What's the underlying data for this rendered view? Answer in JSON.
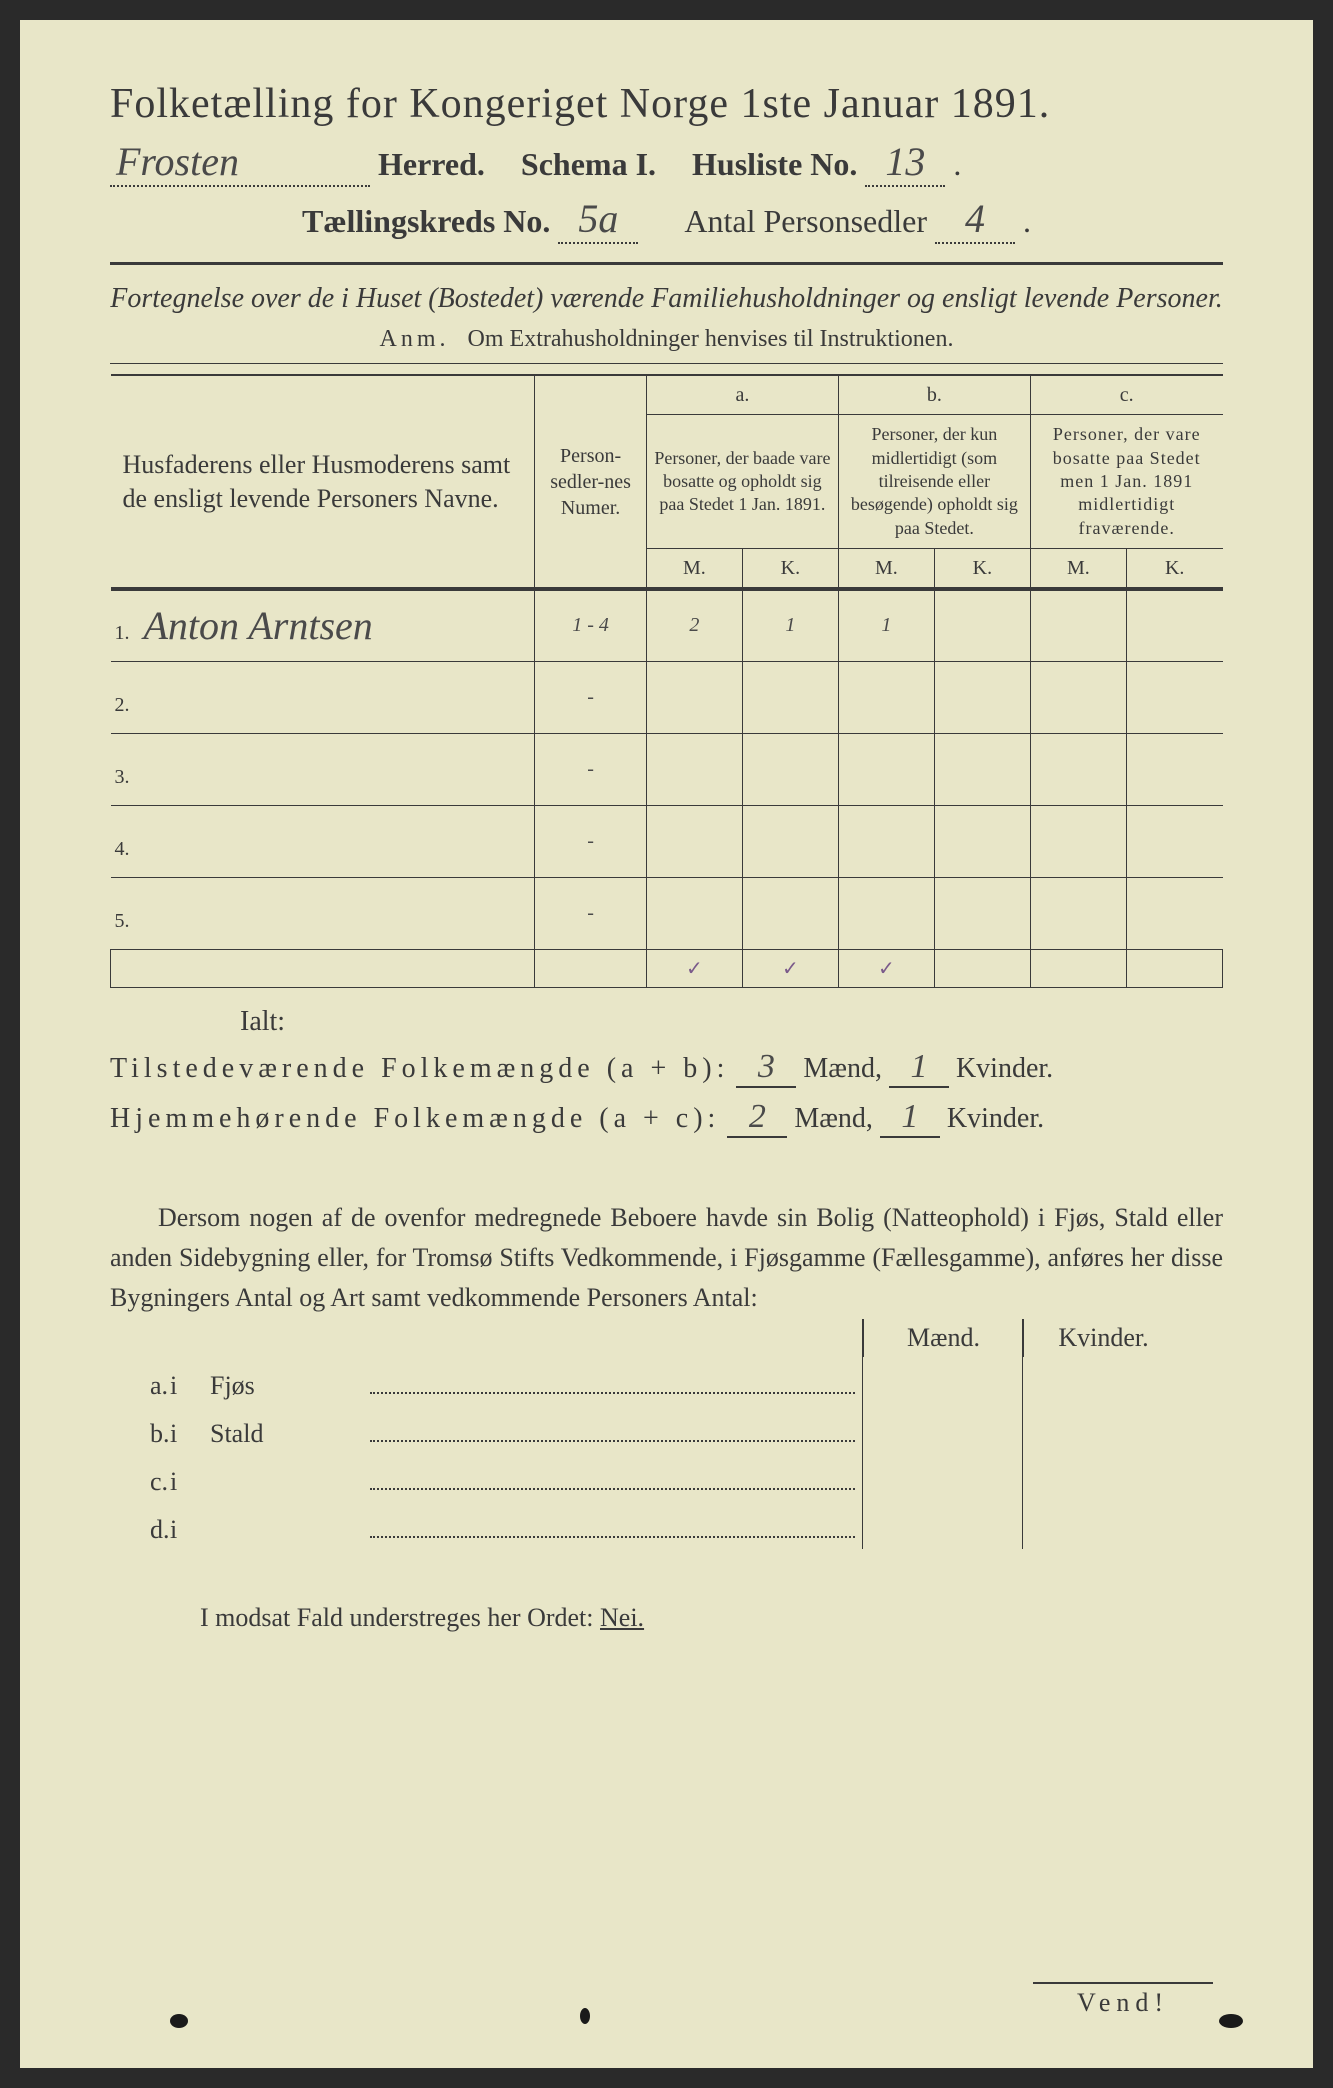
{
  "colors": {
    "paper": "#e8e6c8",
    "ink": "#3a3a3a",
    "handwriting": "#4a4a4a",
    "checkmark": "#7a5a8a"
  },
  "header": {
    "title": "Folketælling for Kongeriget Norge 1ste Januar 1891.",
    "herred_value": "Frosten",
    "herred_label": "Herred.",
    "schema_label": "Schema I.",
    "husliste_label": "Husliste No.",
    "husliste_value": "13",
    "kreds_label": "Tællingskreds No.",
    "kreds_value": "5a",
    "antal_label": "Antal Personsedler",
    "antal_value": "4"
  },
  "subtitle": "Fortegnelse over de i Huset (Bostedet) værende Familiehusholdninger og ensligt levende Personer.",
  "anm_label": "Anm.",
  "anm_text": "Om Extrahusholdninger henvises til Instruktionen.",
  "table": {
    "col1": "Husfaderens eller Husmoderens samt de ensligt levende Personers Navne.",
    "col2": "Person-sedler-nes Numer.",
    "col_a_label": "a.",
    "col_a": "Personer, der baade vare bosatte og opholdt sig paa Stedet 1 Jan. 1891.",
    "col_b_label": "b.",
    "col_b": "Personer, der kun midlertidigt (som tilreisende eller besøgende) opholdt sig paa Stedet.",
    "col_c_label": "c.",
    "col_c": "Personer, der vare bosatte paa Stedet men 1 Jan. 1891 midlertidigt fraværende.",
    "m": "M.",
    "k": "K.",
    "rows": [
      {
        "n": "1.",
        "name": "Anton Arntsen",
        "num": "1 - 4",
        "am": "2",
        "ak": "1",
        "bm": "1",
        "bk": "",
        "cm": "",
        "ck": ""
      },
      {
        "n": "2.",
        "name": "",
        "num": "-",
        "am": "",
        "ak": "",
        "bm": "",
        "bk": "",
        "cm": "",
        "ck": ""
      },
      {
        "n": "3.",
        "name": "",
        "num": "-",
        "am": "",
        "ak": "",
        "bm": "",
        "bk": "",
        "cm": "",
        "ck": ""
      },
      {
        "n": "4.",
        "name": "",
        "num": "-",
        "am": "",
        "ak": "",
        "bm": "",
        "bk": "",
        "cm": "",
        "ck": ""
      },
      {
        "n": "5.",
        "name": "",
        "num": "-",
        "am": "",
        "ak": "",
        "bm": "",
        "bk": "",
        "cm": "",
        "ck": ""
      }
    ],
    "checks": [
      "✓",
      "✓",
      "✓"
    ]
  },
  "totals": {
    "ialt": "Ialt:",
    "line1_label": "Tilstedeværende Folkemængde (a + b):",
    "line1_m": "3",
    "line1_k": "1",
    "line2_label": "Hjemmehørende Folkemængde (a + c):",
    "line2_m": "2",
    "line2_k": "1",
    "maend": "Mænd,",
    "kvinder": "Kvinder."
  },
  "para": "Dersom nogen af de ovenfor medregnede Beboere havde sin Bolig (Natteophold) i Fjøs, Stald eller anden Sidebygning eller, for Tromsø Stifts Vedkommende, i Fjøsgamme (Fællesgamme), anføres her disse Bygningers Antal og Art samt vedkommende Personers Antal:",
  "side": {
    "maend": "Mænd.",
    "kvinder": "Kvinder.",
    "rows": [
      {
        "lab": "a.",
        "i": "i",
        "what": "Fjøs"
      },
      {
        "lab": "b.",
        "i": "i",
        "what": "Stald"
      },
      {
        "lab": "c.",
        "i": "i",
        "what": ""
      },
      {
        "lab": "d.",
        "i": "i",
        "what": ""
      }
    ]
  },
  "nei_line_pre": "I modsat Fald understreges her Ordet: ",
  "nei": "Nei.",
  "vend": "Vend!"
}
